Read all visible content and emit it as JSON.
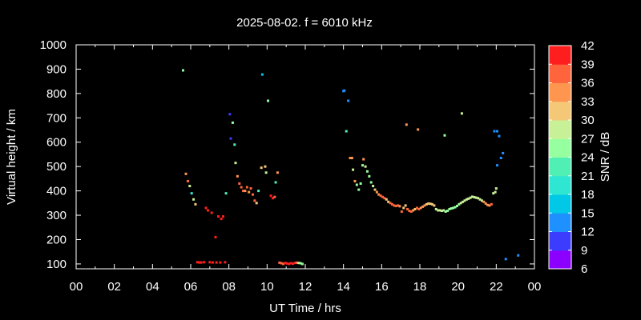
{
  "chart_data": {
    "type": "scatter",
    "title": "2025-08-02. f = 6010 kHz",
    "xlabel": "UT Time / hrs",
    "ylabel": "Virtual height / km",
    "xlim": [
      0,
      24
    ],
    "ylim": [
      80,
      1000
    ],
    "xticks": [
      "00",
      "02",
      "04",
      "06",
      "08",
      "10",
      "12",
      "14",
      "16",
      "18",
      "20",
      "22",
      "00"
    ],
    "yticks": [
      100,
      200,
      300,
      400,
      500,
      600,
      700,
      800,
      900,
      1000
    ],
    "colorbar": {
      "label": "SNR / dB",
      "range": [
        6,
        42
      ],
      "ticks": [
        6,
        9,
        12,
        15,
        18,
        21,
        24,
        27,
        30,
        33,
        36,
        39,
        42
      ],
      "colors": [
        "#8B00FF",
        "#3C3CFF",
        "#1E90FF",
        "#00C8E6",
        "#2EE6D2",
        "#50F0B4",
        "#96FFA0",
        "#C8F096",
        "#F5C878",
        "#FF9650",
        "#FF643C",
        "#FF1E1E"
      ]
    },
    "points": [
      [
        5.6,
        895,
        24
      ],
      [
        5.75,
        470,
        33
      ],
      [
        5.85,
        440,
        36
      ],
      [
        5.95,
        420,
        28
      ],
      [
        6.05,
        390,
        20
      ],
      [
        6.15,
        365,
        27
      ],
      [
        6.25,
        345,
        30
      ],
      [
        6.35,
        107,
        40
      ],
      [
        6.45,
        106,
        40
      ],
      [
        6.55,
        106,
        40
      ],
      [
        6.7,
        107,
        40
      ],
      [
        6.8,
        330,
        39
      ],
      [
        6.9,
        320,
        39
      ],
      [
        7.0,
        107,
        40
      ],
      [
        7.1,
        310,
        39
      ],
      [
        7.15,
        106,
        40
      ],
      [
        7.3,
        210,
        40
      ],
      [
        7.35,
        106,
        40
      ],
      [
        7.45,
        295,
        40
      ],
      [
        7.55,
        106,
        40
      ],
      [
        7.6,
        285,
        40
      ],
      [
        7.7,
        295,
        40
      ],
      [
        7.8,
        107,
        40
      ],
      [
        7.85,
        390,
        23
      ],
      [
        8.05,
        715,
        10
      ],
      [
        8.1,
        615,
        10
      ],
      [
        8.2,
        680,
        24
      ],
      [
        8.3,
        590,
        23
      ],
      [
        8.35,
        515,
        28
      ],
      [
        8.45,
        460,
        33
      ],
      [
        8.55,
        430,
        36
      ],
      [
        8.65,
        415,
        37
      ],
      [
        8.75,
        400,
        36
      ],
      [
        8.85,
        400,
        34
      ],
      [
        8.95,
        415,
        38
      ],
      [
        9.05,
        395,
        33
      ],
      [
        9.15,
        410,
        36
      ],
      [
        9.25,
        385,
        38
      ],
      [
        9.35,
        360,
        36
      ],
      [
        9.45,
        350,
        30
      ],
      [
        9.55,
        400,
        22
      ],
      [
        9.7,
        495,
        30
      ],
      [
        9.75,
        878,
        17
      ],
      [
        9.9,
        500,
        30
      ],
      [
        9.95,
        475,
        28
      ],
      [
        10.05,
        770,
        24
      ],
      [
        10.2,
        380,
        39
      ],
      [
        10.3,
        370,
        40
      ],
      [
        10.4,
        375,
        37
      ],
      [
        10.45,
        435,
        23
      ],
      [
        10.55,
        475,
        33
      ],
      [
        10.65,
        105,
        36
      ],
      [
        10.75,
        103,
        38
      ],
      [
        10.85,
        100,
        38
      ],
      [
        10.95,
        104,
        40
      ],
      [
        11.05,
        102,
        40
      ],
      [
        11.15,
        100,
        40
      ],
      [
        11.25,
        103,
        40
      ],
      [
        11.35,
        101,
        40
      ],
      [
        11.45,
        104,
        40
      ],
      [
        11.55,
        105,
        36
      ],
      [
        11.65,
        104,
        27
      ],
      [
        11.75,
        103,
        24
      ],
      [
        11.85,
        100,
        24
      ],
      [
        14.0,
        810,
        12
      ],
      [
        14.05,
        812,
        12
      ],
      [
        14.15,
        645,
        23
      ],
      [
        14.25,
        770,
        12
      ],
      [
        14.35,
        535,
        33
      ],
      [
        14.45,
        535,
        33
      ],
      [
        14.5,
        487,
        28
      ],
      [
        14.6,
        440,
        34
      ],
      [
        14.7,
        425,
        24
      ],
      [
        14.8,
        405,
        24
      ],
      [
        14.9,
        430,
        24
      ],
      [
        15.0,
        505,
        24
      ],
      [
        15.05,
        530,
        33
      ],
      [
        15.15,
        500,
        28
      ],
      [
        15.25,
        480,
        24
      ],
      [
        15.35,
        460,
        24
      ],
      [
        15.45,
        435,
        24
      ],
      [
        15.55,
        420,
        28
      ],
      [
        15.65,
        405,
        30
      ],
      [
        15.75,
        395,
        34
      ],
      [
        15.85,
        385,
        34
      ],
      [
        15.95,
        380,
        36
      ],
      [
        16.05,
        375,
        36
      ],
      [
        16.15,
        370,
        36
      ],
      [
        16.25,
        365,
        30
      ],
      [
        16.35,
        355,
        30
      ],
      [
        16.45,
        350,
        36
      ],
      [
        16.55,
        345,
        36
      ],
      [
        16.65,
        340,
        36
      ],
      [
        16.75,
        338,
        36
      ],
      [
        16.85,
        340,
        36
      ],
      [
        16.95,
        337,
        33
      ],
      [
        17.05,
        315,
        36
      ],
      [
        17.15,
        330,
        30
      ],
      [
        17.25,
        340,
        30
      ],
      [
        17.3,
        672,
        33
      ],
      [
        17.35,
        325,
        36
      ],
      [
        17.45,
        318,
        36
      ],
      [
        17.55,
        315,
        36
      ],
      [
        17.65,
        320,
        34
      ],
      [
        17.75,
        325,
        30
      ],
      [
        17.85,
        330,
        36
      ],
      [
        17.95,
        325,
        36
      ],
      [
        18.05,
        330,
        33
      ],
      [
        18.15,
        335,
        33
      ],
      [
        18.25,
        340,
        33
      ],
      [
        18.35,
        345,
        30
      ],
      [
        18.45,
        348,
        30
      ],
      [
        18.55,
        347,
        30
      ],
      [
        18.65,
        345,
        30
      ],
      [
        18.75,
        340,
        30
      ],
      [
        18.85,
        325,
        28
      ],
      [
        18.95,
        320,
        28
      ],
      [
        19.05,
        320,
        28
      ],
      [
        19.15,
        318,
        28
      ],
      [
        19.25,
        320,
        28
      ],
      [
        19.35,
        315,
        24
      ],
      [
        19.45,
        318,
        24
      ],
      [
        19.55,
        325,
        24
      ],
      [
        19.65,
        328,
        24
      ],
      [
        19.75,
        330,
        24
      ],
      [
        19.85,
        333,
        24
      ],
      [
        19.95,
        338,
        24
      ],
      [
        20.05,
        345,
        24
      ],
      [
        20.15,
        350,
        28
      ],
      [
        20.25,
        355,
        28
      ],
      [
        20.35,
        360,
        28
      ],
      [
        20.45,
        365,
        28
      ],
      [
        20.55,
        368,
        28
      ],
      [
        20.65,
        372,
        28
      ],
      [
        20.75,
        376,
        28
      ],
      [
        20.85,
        374,
        28
      ],
      [
        20.95,
        372,
        28
      ],
      [
        21.05,
        370,
        28
      ],
      [
        21.15,
        365,
        28
      ],
      [
        21.25,
        360,
        28
      ],
      [
        21.35,
        355,
        33
      ],
      [
        21.45,
        348,
        33
      ],
      [
        21.55,
        342,
        34
      ],
      [
        21.65,
        340,
        34
      ],
      [
        21.75,
        345,
        36
      ],
      [
        21.85,
        390,
        27
      ],
      [
        21.95,
        395,
        27
      ],
      [
        22.0,
        410,
        27
      ],
      [
        17.9,
        652,
        33
      ],
      [
        19.3,
        628,
        24
      ],
      [
        20.2,
        718,
        28
      ],
      [
        21.9,
        645,
        12
      ],
      [
        22.05,
        645,
        12
      ],
      [
        22.15,
        625,
        12
      ],
      [
        22.05,
        505,
        12
      ],
      [
        22.25,
        535,
        12
      ],
      [
        22.35,
        555,
        12
      ],
      [
        22.5,
        120,
        12
      ],
      [
        23.15,
        135,
        12
      ]
    ]
  }
}
